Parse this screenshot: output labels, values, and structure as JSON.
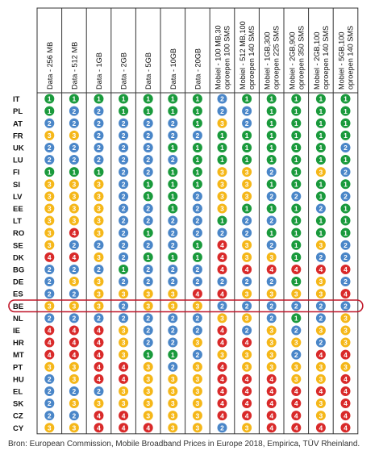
{
  "chart_data": {
    "type": "heatmap",
    "title": "",
    "xlabel": "",
    "ylabel": "",
    "columns": [
      [
        "Data - 256 MB"
      ],
      [
        "Data - 512 MB"
      ],
      [
        "Data - 1GB"
      ],
      [
        "Data - 2GB"
      ],
      [
        "Data - 5GB"
      ],
      [
        "Data - 10GB"
      ],
      [
        "Data - 20GB"
      ],
      [
        "Mobiel - 100 MB,30",
        "oproepen 100 SMS"
      ],
      [
        "Mobiel - 512 MB,100",
        "oproepen 140 SMS"
      ],
      [
        "Mobiel - 1GB,300",
        "oproepen 225 SMS"
      ],
      [
        "Mobiel - 2GB,900",
        "oproepen 350 SMS"
      ],
      [
        "Mobiel - 2GB,100",
        "oproepen 140 SMS"
      ],
      [
        "Mobiel - 5GB,100",
        "oproepen 140 SMS"
      ]
    ],
    "rows": [
      "IT",
      "PL",
      "AT",
      "FR",
      "UK",
      "LU",
      "FI",
      "SI",
      "LV",
      "EE",
      "LT",
      "RO",
      "SE",
      "DK",
      "BG",
      "DE",
      "ES",
      "BE",
      "NL",
      "IE",
      "HR",
      "MT",
      "PT",
      "HU",
      "EL",
      "SK",
      "CZ",
      "CY"
    ],
    "values": [
      [
        1,
        1,
        1,
        1,
        1,
        1,
        1,
        2,
        1,
        1,
        1,
        1,
        1
      ],
      [
        1,
        2,
        2,
        1,
        1,
        1,
        1,
        2,
        2,
        1,
        1,
        1,
        1
      ],
      [
        2,
        2,
        2,
        2,
        2,
        2,
        1,
        3,
        2,
        1,
        1,
        1,
        1
      ],
      [
        3,
        3,
        2,
        2,
        2,
        2,
        2,
        1,
        1,
        1,
        1,
        1,
        1
      ],
      [
        2,
        2,
        2,
        2,
        2,
        1,
        1,
        1,
        1,
        1,
        1,
        1,
        2
      ],
      [
        2,
        2,
        2,
        2,
        2,
        2,
        1,
        1,
        1,
        1,
        1,
        1,
        1
      ],
      [
        1,
        1,
        1,
        2,
        2,
        1,
        1,
        3,
        3,
        2,
        1,
        3,
        2
      ],
      [
        3,
        3,
        3,
        2,
        1,
        1,
        1,
        3,
        3,
        1,
        1,
        1,
        1
      ],
      [
        3,
        3,
        3,
        2,
        1,
        1,
        2,
        3,
        3,
        2,
        2,
        1,
        2
      ],
      [
        3,
        3,
        3,
        2,
        2,
        1,
        2,
        3,
        1,
        1,
        1,
        2,
        1
      ],
      [
        3,
        3,
        3,
        2,
        2,
        2,
        2,
        1,
        2,
        2,
        1,
        1,
        1
      ],
      [
        3,
        4,
        3,
        2,
        1,
        2,
        2,
        2,
        2,
        1,
        1,
        1,
        1
      ],
      [
        3,
        2,
        2,
        2,
        2,
        2,
        1,
        4,
        3,
        2,
        1,
        3,
        2
      ],
      [
        4,
        4,
        3,
        2,
        1,
        1,
        1,
        4,
        3,
        3,
        1,
        2,
        2
      ],
      [
        2,
        2,
        2,
        1,
        2,
        2,
        2,
        4,
        4,
        4,
        4,
        4,
        4
      ],
      [
        2,
        3,
        3,
        2,
        2,
        2,
        2,
        2,
        2,
        2,
        1,
        3,
        2
      ],
      [
        2,
        2,
        3,
        3,
        3,
        3,
        4,
        4,
        3,
        3,
        3,
        3,
        4
      ],
      [
        3,
        3,
        3,
        2,
        3,
        3,
        3,
        2,
        2,
        2,
        2,
        2,
        2
      ],
      [
        2,
        2,
        2,
        2,
        2,
        2,
        2,
        3,
        3,
        2,
        1,
        2,
        3
      ],
      [
        4,
        4,
        4,
        3,
        2,
        2,
        2,
        4,
        2,
        3,
        2,
        3,
        3
      ],
      [
        4,
        4,
        4,
        3,
        2,
        2,
        3,
        4,
        4,
        3,
        3,
        2,
        3
      ],
      [
        4,
        4,
        4,
        3,
        1,
        1,
        2,
        3,
        3,
        3,
        2,
        4,
        4
      ],
      [
        3,
        3,
        4,
        4,
        3,
        2,
        3,
        4,
        3,
        3,
        3,
        3,
        3
      ],
      [
        2,
        3,
        4,
        4,
        3,
        3,
        3,
        4,
        4,
        4,
        3,
        3,
        4
      ],
      [
        2,
        2,
        2,
        3,
        3,
        3,
        3,
        4,
        4,
        4,
        4,
        4,
        4
      ],
      [
        2,
        3,
        3,
        3,
        3,
        3,
        3,
        4,
        4,
        4,
        4,
        3,
        4
      ],
      [
        2,
        2,
        4,
        4,
        3,
        3,
        3,
        4,
        4,
        4,
        4,
        3,
        4
      ],
      [
        3,
        3,
        4,
        4,
        4,
        3,
        3,
        2,
        3,
        4,
        4,
        4,
        4
      ]
    ],
    "highlight_row": "BE",
    "colors": {
      "1": "#1a9a3c",
      "2": "#4a86c8",
      "3": "#f5b719",
      "4": "#d92a2a",
      "grid": "#333333",
      "highlight": "#c0182a"
    }
  },
  "source_text": "Bron: European Commission, Mobile Broadband Prices in Europe 2018, Empirica, TÜV Rheinland."
}
